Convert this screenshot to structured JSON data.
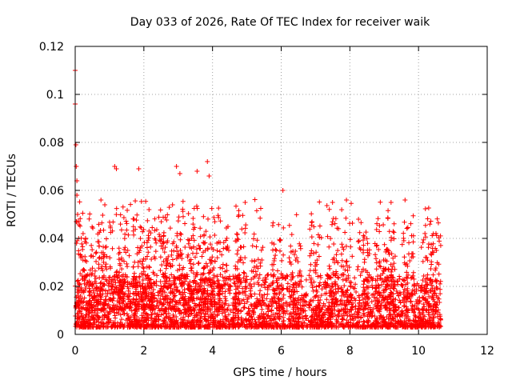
{
  "chart_data": {
    "type": "scatter",
    "title": "Day 033 of 2026, Rate Of TEC Index for receiver waik",
    "xlabel": "GPS time / hours",
    "ylabel": "ROTI / TECUs",
    "xlim": [
      0,
      12
    ],
    "ylim": [
      0,
      0.12
    ],
    "x_ticks": [
      "0",
      "2",
      "4",
      "6",
      "8",
      "10",
      "12"
    ],
    "y_ticks": [
      "0",
      "0.02",
      "0.04",
      "0.06",
      "0.08",
      "0.1",
      "0.12"
    ],
    "grid": true,
    "marker": "plus",
    "series": [
      {
        "name": "ROTI",
        "color": "#ff0000",
        "x": [
          0.0,
          0.0,
          0.02,
          0.03,
          0.05,
          0.05,
          0.07,
          0.1,
          0.75,
          1.15,
          1.2,
          1.85,
          2.15,
          2.95,
          3.05,
          3.55,
          3.85,
          3.9,
          4.95,
          6.05,
          7.9,
          9.2
        ],
        "y": [
          0.11,
          0.096,
          0.079,
          0.07,
          0.064,
          0.058,
          0.05,
          0.04,
          0.056,
          0.07,
          0.069,
          0.069,
          0.052,
          0.07,
          0.067,
          0.068,
          0.072,
          0.066,
          0.055,
          0.06,
          0.056,
          0.055
        ]
      }
    ]
  }
}
